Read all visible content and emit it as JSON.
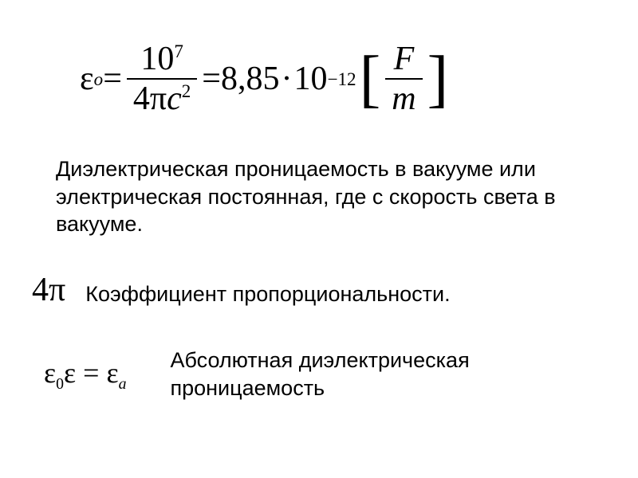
{
  "colors": {
    "bg": "#ffffff",
    "text": "#000000"
  },
  "formula_main": {
    "eps": "ε",
    "sub_o": "o",
    "eq": " = ",
    "num_base": "10",
    "num_exp": "7",
    "den_4": "4",
    "den_pi": "π",
    "den_c": "c",
    "den_c_exp": "2",
    "eq2": " = ",
    "val": "8,85",
    "dot": "·",
    "val_base": "10",
    "val_exp": "−12",
    "unit_F": "F",
    "unit_m": "m"
  },
  "text1": "Диэлектрическая проницаемость в вакууме или электрическая постоянная, где с скорость света в вакууме.",
  "fourpi": {
    "four": "4",
    "pi": "π"
  },
  "text2": "Коэффициент пропорциональности.",
  "formula_abs": {
    "eps": "ε",
    "sub0": "0",
    "eps2": "ε",
    "eq": " = ",
    "eps3": "ε",
    "suba": "a"
  },
  "text3": "Абсолютная диэлектрическая проницаемость",
  "fonts": {
    "body": "Arial",
    "math": "Times New Roman",
    "body_size_pt": 20,
    "math_size_main_pt": 32,
    "math_size_abs_pt": 27
  }
}
